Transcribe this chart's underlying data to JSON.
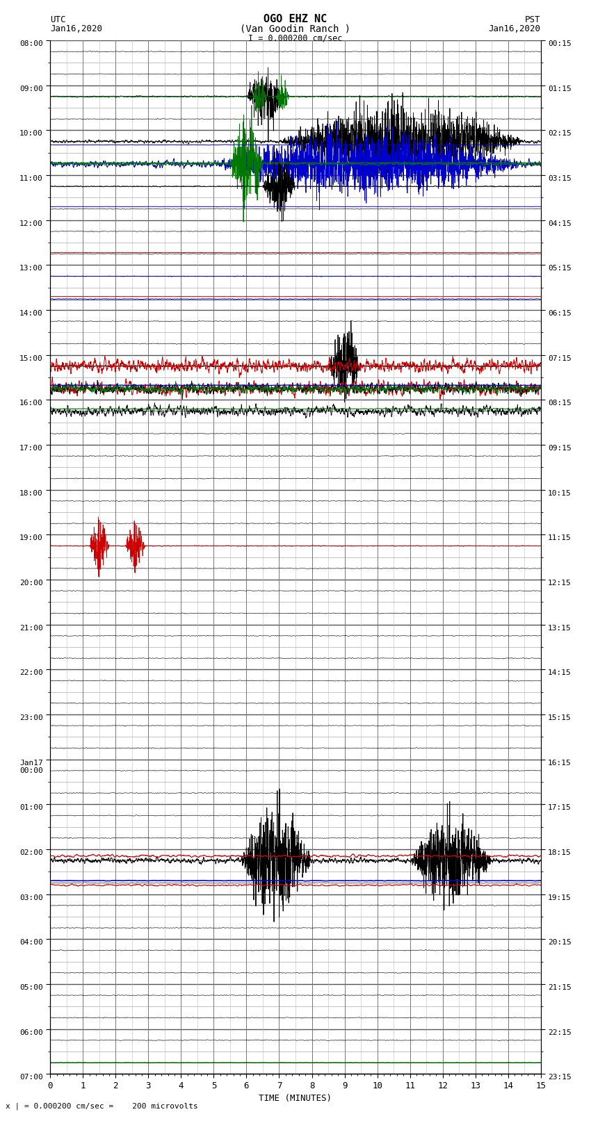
{
  "title_line1": "OGO EHZ NC",
  "title_line2": "(Van Goodin Ranch )",
  "scale_label": "I = 0.000200 cm/sec",
  "left_label1": "UTC",
  "left_label2": "Jan16,2020",
  "right_label1": "PST",
  "right_label2": "Jan16,2020",
  "xlabel": "TIME (MINUTES)",
  "bottom_note": "x | = 0.000200 cm/sec =    200 microvolts",
  "xmin": 0,
  "xmax": 15,
  "bg_color": "#ffffff",
  "grid_color": "#888888",
  "black": "#000000",
  "blue": "#0000cc",
  "red": "#cc0000",
  "green": "#007700",
  "utc_labels": [
    "08:00",
    "09:00",
    "10:00",
    "11:00",
    "12:00",
    "13:00",
    "14:00",
    "15:00",
    "16:00",
    "17:00",
    "18:00",
    "19:00",
    "20:00",
    "21:00",
    "22:00",
    "23:00",
    "Jan17\n00:00",
    "01:00",
    "02:00",
    "03:00",
    "04:00",
    "05:00",
    "06:00",
    "07:00"
  ],
  "pst_labels": [
    "00:15",
    "01:15",
    "02:15",
    "03:15",
    "04:15",
    "05:15",
    "06:15",
    "07:15",
    "08:15",
    "09:15",
    "10:15",
    "11:15",
    "12:15",
    "13:15",
    "14:15",
    "15:15",
    "16:15",
    "17:15",
    "18:15",
    "19:15",
    "20:15",
    "21:15",
    "22:15",
    "23:15"
  ]
}
